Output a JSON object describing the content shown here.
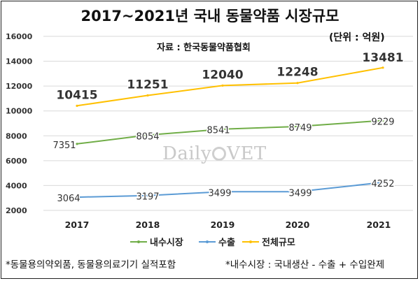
{
  "chart_data": {
    "type": "line",
    "title": "2017~2021년 국내 동물약품 시장규모",
    "source": "자료 : 한국동물약품협회",
    "unit": "(단위 : 억원)",
    "categories": [
      "2017",
      "2018",
      "2019",
      "2020",
      "2021"
    ],
    "ylim": [
      2000,
      16000
    ],
    "yticks": [
      "2000",
      "4000",
      "6000",
      "8000",
      "10000",
      "12000",
      "14000",
      "16000"
    ],
    "grid": true,
    "legend_position": "bottom",
    "series": [
      {
        "name": "내수시장",
        "values": [
          7351,
          8054,
          8541,
          8749,
          9229
        ],
        "color": "#70ad47"
      },
      {
        "name": "수출",
        "values": [
          3064,
          3197,
          3499,
          3499,
          4252
        ],
        "color": "#5b9bd5"
      },
      {
        "name": "전체규모",
        "values": [
          10415,
          11251,
          12040,
          12248,
          13481
        ],
        "color": "#ffc000"
      }
    ]
  },
  "watermark": {
    "text_left": "Daily",
    "text_right": "VET"
  },
  "footnotes": {
    "left": "*동물용의약외품, 동물용의료기기 실적포함",
    "right": "*내수시장 : 국내생산 - 수출 + 수입완제"
  }
}
